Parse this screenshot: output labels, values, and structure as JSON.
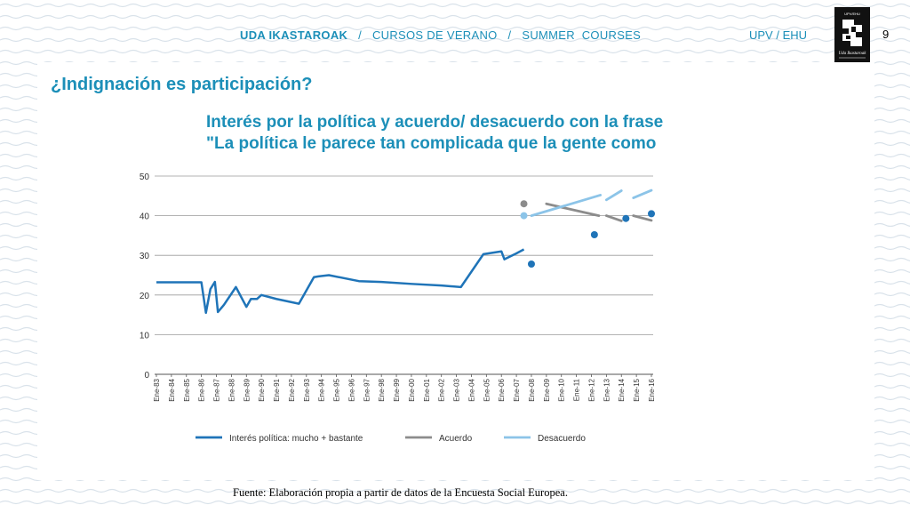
{
  "header": {
    "part1": "UDA IKASTAROAK",
    "sep1": "/",
    "part2": "CURSOS DE VERANO",
    "sep2": "/",
    "part3": "SUMMER  COURSES",
    "institution": "UPV / EHU",
    "page_number": "9"
  },
  "logo": {
    "caption_top": "UPV/EHU",
    "caption_bottom": "Uda Ikastaroak"
  },
  "slide_title": "¿Indignación es participación?",
  "chart_title_line1": "Interés por la política y acuerdo/ desacuerdo con la frase",
  "chart_title_line2": "\"La política le parece tan complicada que la gente como",
  "source": "Fuente: Elaboración propia a partir de datos de la Encuesta Social Europea.",
  "colors": {
    "accent": "#1c8fb8",
    "interes": "#1f74b8",
    "acuerdo": "#8c8c8c",
    "desacuerdo": "#8cc4e8",
    "point_blue": "#1f74b8"
  },
  "chart_data": {
    "type": "line",
    "categories": [
      "Ene-83",
      "Ene-84",
      "Ene-85",
      "Ene-86",
      "Ene-87",
      "Ene-88",
      "Ene-89",
      "Ene-90",
      "Ene-91",
      "Ene-92",
      "Ene-93",
      "Ene-94",
      "Ene-95",
      "Ene-96",
      "Ene-97",
      "Ene-98",
      "Ene-99",
      "Ene-00",
      "Ene-01",
      "Ene-02",
      "Ene-03",
      "Ene-04",
      "Ene-05",
      "Ene-06",
      "Ene-07",
      "Ene-08",
      "Ene-09",
      "Ene-10",
      "Ene-11",
      "Ene-12",
      "Ene-13",
      "Ene-14",
      "Ene-15",
      "Ene-16"
    ],
    "ylim": [
      0,
      50
    ],
    "yticks": [
      0,
      10,
      20,
      30,
      40,
      50
    ],
    "grid": true,
    "legend_position": "bottom",
    "series": [
      {
        "name": "Interés política: mucho + bastante",
        "points": [
          [
            0,
            23.2
          ],
          [
            3,
            23.2
          ],
          [
            3.3,
            15.5
          ],
          [
            3.6,
            21.5
          ],
          [
            3.9,
            23.3
          ],
          [
            4.1,
            15.7
          ],
          [
            4.5,
            17.5
          ],
          [
            5.3,
            22
          ],
          [
            6,
            17
          ],
          [
            6.3,
            19
          ],
          [
            6.7,
            19
          ],
          [
            7,
            20
          ],
          [
            8,
            19
          ],
          [
            9.5,
            17.8
          ],
          [
            10.5,
            24.5
          ],
          [
            10.8,
            24.7
          ],
          [
            11.5,
            25
          ],
          [
            13.5,
            23.5
          ],
          [
            15,
            23.3
          ],
          [
            17,
            22.8
          ],
          [
            19,
            22.4
          ],
          [
            20.3,
            22
          ],
          [
            21.8,
            30.3
          ],
          [
            23,
            31
          ],
          [
            23.2,
            29
          ],
          [
            24,
            30.5
          ],
          [
            24.5,
            31.5
          ]
        ]
      },
      {
        "name": "Acuerdo",
        "points": [
          [
            26,
            43
          ],
          [
            28,
            41
          ],
          [
            29.5,
            40
          ],
          [
            30,
            40
          ],
          [
            31,
            38.7
          ],
          [
            31.8,
            40
          ],
          [
            32.5,
            39.5
          ],
          [
            33,
            38.8
          ]
        ],
        "segments": [
          [
            [
              26,
              43
            ],
            [
              29.5,
              40
            ]
          ],
          [
            [
              30,
              40
            ],
            [
              31,
              38.7
            ]
          ],
          [
            [
              31.8,
              40
            ],
            [
              33,
              38.8
            ]
          ]
        ]
      },
      {
        "name": "Desacuerdo",
        "segments": [
          [
            [
              25,
              40
            ],
            [
              29.6,
              45.2
            ]
          ],
          [
            [
              30,
              44
            ],
            [
              31,
              46.3
            ]
          ],
          [
            [
              31.8,
              44.5
            ],
            [
              33,
              46.4
            ]
          ]
        ]
      }
    ],
    "extra_points": [
      {
        "series": "Acuerdo",
        "x": 24.5,
        "y": 43
      },
      {
        "series": "Desacuerdo",
        "x": 24.5,
        "y": 40
      },
      {
        "series": "Interés política: mucho + bastante",
        "x": 25,
        "y": 27.8
      },
      {
        "series": "Interés política: mucho + bastante",
        "x": 29.2,
        "y": 35.2
      },
      {
        "series": "Interés política: mucho + bastante",
        "x": 31.3,
        "y": 39.3
      },
      {
        "series": "Interés política: mucho + bastante",
        "x": 33,
        "y": 40.5
      }
    ],
    "legend": [
      {
        "label": "Interés política: mucho + bastante"
      },
      {
        "label": "Acuerdo"
      },
      {
        "label": "Desacuerdo"
      }
    ]
  }
}
